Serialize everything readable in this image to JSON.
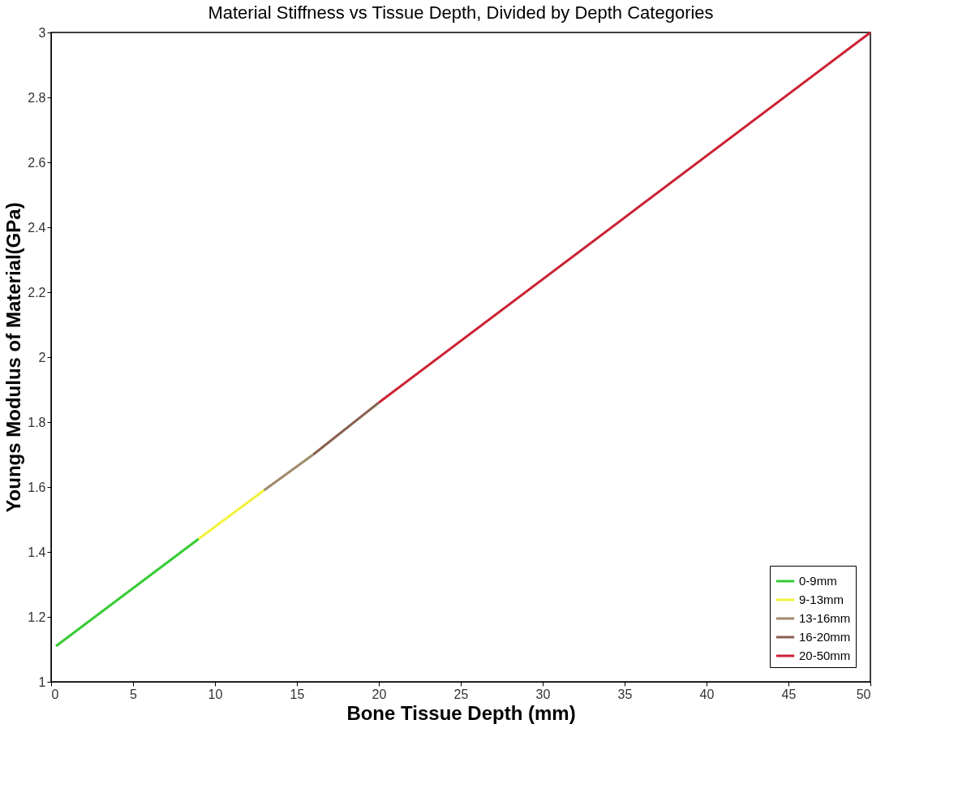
{
  "chart_data": {
    "type": "line",
    "title": "Material Stiffness vs Tissue Depth, Divided by Depth Categories",
    "xlabel": "Bone Tissue Depth (mm)",
    "ylabel": "Youngs Modulus of Material(GPa)",
    "series": [
      {
        "name": "0-9mm",
        "color": "#33cc33",
        "x": [
          0.3,
          9
        ],
        "values": [
          1.11,
          1.44
        ]
      },
      {
        "name": "9-13mm",
        "color": "#f2f23a",
        "x": [
          9,
          13
        ],
        "values": [
          1.44,
          1.59
        ]
      },
      {
        "name": "13-16mm",
        "color": "#a08a6a",
        "x": [
          13,
          16
        ],
        "values": [
          1.59,
          1.7
        ]
      },
      {
        "name": "16-20mm",
        "color": "#8a6050",
        "x": [
          16,
          20
        ],
        "values": [
          1.7,
          1.86
        ]
      },
      {
        "name": "20-50mm",
        "color": "#cc2233",
        "x": [
          20,
          50
        ],
        "values": [
          1.86,
          3.0
        ]
      }
    ],
    "xlim": [
      0,
      50
    ],
    "xticks": [
      0,
      5,
      10,
      15,
      20,
      25,
      30,
      35,
      40,
      45,
      50
    ],
    "ylim": [
      1,
      3
    ],
    "yticks": [
      1,
      1.2,
      1.4,
      1.6,
      1.8,
      2,
      2.2,
      2.4,
      2.6,
      2.8,
      3
    ],
    "grid": false,
    "legend": "bottom right",
    "marker": "none",
    "line_style": "solid"
  }
}
